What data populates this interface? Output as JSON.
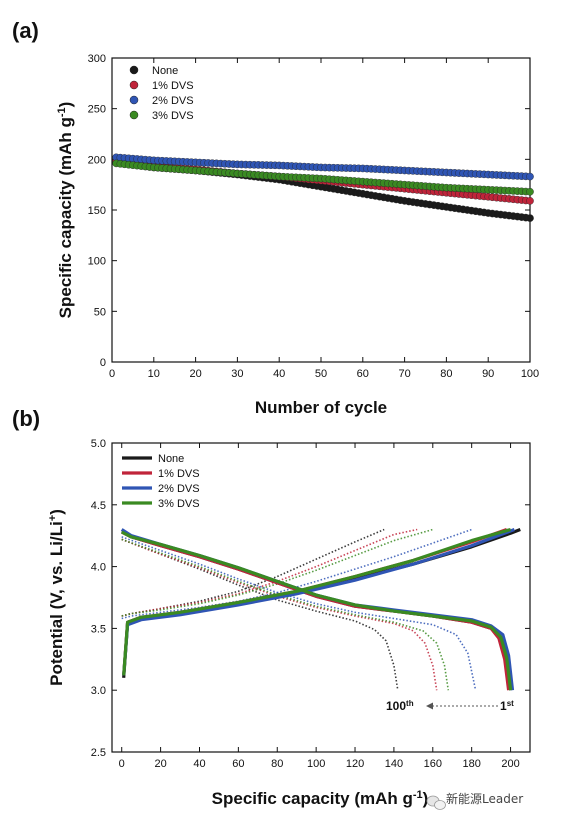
{
  "colors": {
    "None": "#1a1a1a",
    "1% DVS": "#c0243a",
    "2% DVS": "#2f55b4",
    "3% DVS": "#3a8a22"
  },
  "watermark": {
    "icon": "wechat-icon",
    "text": "新能源Leader"
  },
  "chart_data": [
    {
      "panel": "(a)",
      "type": "scatter",
      "xlabel": "Number of cycle",
      "ylabel": "Specific capacity (mAh g-1)",
      "xlim": [
        0,
        100
      ],
      "ylim": [
        0,
        300
      ],
      "xticks": [
        0,
        10,
        20,
        30,
        40,
        50,
        60,
        70,
        80,
        90,
        100
      ],
      "yticks": [
        0,
        50,
        100,
        150,
        200,
        250,
        300
      ],
      "legend": "top-left",
      "series": [
        {
          "name": "None",
          "x": [
            1,
            10,
            20,
            30,
            40,
            50,
            60,
            70,
            80,
            90,
            100
          ],
          "y": [
            197,
            192,
            189,
            185,
            180,
            173,
            166,
            159,
            153,
            147,
            142
          ]
        },
        {
          "name": "1% DVS",
          "x": [
            1,
            10,
            20,
            30,
            40,
            50,
            60,
            70,
            80,
            90,
            100
          ],
          "y": [
            198,
            193,
            190,
            186,
            183,
            179,
            175,
            171,
            167,
            163,
            159
          ]
        },
        {
          "name": "2% DVS",
          "x": [
            1,
            10,
            20,
            30,
            40,
            50,
            60,
            70,
            80,
            90,
            100
          ],
          "y": [
            202,
            199,
            197,
            195,
            194,
            192,
            191,
            189,
            187,
            185,
            183
          ]
        },
        {
          "name": "3% DVS",
          "x": [
            1,
            10,
            20,
            30,
            40,
            50,
            60,
            70,
            80,
            90,
            100
          ],
          "y": [
            196,
            192,
            189,
            186,
            183,
            181,
            178,
            175,
            172,
            170,
            168
          ]
        }
      ]
    },
    {
      "panel": "(b)",
      "type": "line",
      "xlabel": "Specific capacity (mAh g-1)",
      "ylabel": "Potential (V, vs. Li/Li+)",
      "xlim": [
        -5,
        210
      ],
      "ylim": [
        2.5,
        5.0
      ],
      "xticks": [
        0,
        20,
        40,
        60,
        80,
        100,
        120,
        140,
        160,
        180,
        200
      ],
      "yticks": [
        2.5,
        3.0,
        3.5,
        4.0,
        4.5,
        5.0
      ],
      "legend": "top-left",
      "annotations": {
        "cycle_100": "100th",
        "cycle_1": "1st"
      },
      "series": [
        {
          "name": "None",
          "cycle": "1st",
          "segment": "charge",
          "x": [
            1,
            3,
            10,
            30,
            60,
            90,
            120,
            150,
            180,
            200,
            205
          ],
          "y": [
            3.1,
            3.55,
            3.59,
            3.62,
            3.7,
            3.79,
            3.9,
            4.02,
            4.16,
            4.27,
            4.3
          ]
        },
        {
          "name": "None",
          "cycle": "1st",
          "segment": "discharge",
          "x": [
            0,
            5,
            20,
            40,
            60,
            80,
            100,
            120,
            140,
            160,
            180,
            190,
            195,
            198,
            200
          ],
          "y": [
            4.28,
            4.24,
            4.17,
            4.08,
            3.98,
            3.87,
            3.76,
            3.68,
            3.64,
            3.6,
            3.55,
            3.5,
            3.42,
            3.25,
            3.0
          ]
        },
        {
          "name": "1% DVS",
          "cycle": "1st",
          "segment": "charge",
          "x": [
            1,
            3,
            10,
            30,
            60,
            90,
            120,
            150,
            180,
            198
          ],
          "y": [
            3.12,
            3.55,
            3.59,
            3.63,
            3.71,
            3.8,
            3.92,
            4.05,
            4.2,
            4.3
          ]
        },
        {
          "name": "1% DVS",
          "cycle": "1st",
          "segment": "discharge",
          "x": [
            0,
            5,
            20,
            40,
            60,
            80,
            100,
            120,
            140,
            160,
            180,
            190,
            194,
            197,
            199
          ],
          "y": [
            4.28,
            4.24,
            4.17,
            4.08,
            3.98,
            3.87,
            3.76,
            3.68,
            3.64,
            3.6,
            3.55,
            3.5,
            3.42,
            3.25,
            3.0
          ]
        },
        {
          "name": "2% DVS",
          "cycle": "1st",
          "segment": "charge",
          "x": [
            1,
            3,
            10,
            30,
            60,
            90,
            120,
            150,
            180,
            202
          ],
          "y": [
            3.12,
            3.53,
            3.57,
            3.61,
            3.69,
            3.78,
            3.89,
            4.02,
            4.17,
            4.3
          ]
        },
        {
          "name": "2% DVS",
          "cycle": "1st",
          "segment": "discharge",
          "x": [
            0,
            5,
            20,
            40,
            60,
            80,
            100,
            120,
            140,
            160,
            180,
            190,
            196,
            199,
            201
          ],
          "y": [
            4.3,
            4.25,
            4.18,
            4.09,
            3.99,
            3.88,
            3.77,
            3.69,
            3.65,
            3.61,
            3.57,
            3.52,
            3.45,
            3.28,
            3.0
          ]
        },
        {
          "name": "3% DVS",
          "cycle": "1st",
          "segment": "charge",
          "x": [
            1,
            3,
            10,
            30,
            60,
            90,
            120,
            150,
            180,
            200
          ],
          "y": [
            3.12,
            3.55,
            3.59,
            3.63,
            3.71,
            3.8,
            3.92,
            4.05,
            4.21,
            4.3
          ]
        },
        {
          "name": "3% DVS",
          "cycle": "1st",
          "segment": "discharge",
          "x": [
            0,
            5,
            20,
            40,
            60,
            80,
            100,
            120,
            140,
            160,
            180,
            190,
            195,
            198,
            200
          ],
          "y": [
            4.28,
            4.24,
            4.18,
            4.09,
            3.99,
            3.88,
            3.77,
            3.69,
            3.64,
            3.6,
            3.56,
            3.51,
            3.43,
            3.26,
            3.0
          ]
        },
        {
          "name": "None",
          "cycle": "100th",
          "segment": "charge",
          "x": [
            0,
            5,
            20,
            40,
            60,
            80,
            100,
            120,
            135
          ],
          "y": [
            3.6,
            3.62,
            3.66,
            3.72,
            3.8,
            3.92,
            4.06,
            4.2,
            4.3
          ]
        },
        {
          "name": "None",
          "cycle": "100th",
          "segment": "discharge",
          "x": [
            0,
            20,
            40,
            60,
            80,
            100,
            120,
            130,
            136,
            140,
            142
          ],
          "y": [
            4.22,
            4.1,
            3.98,
            3.85,
            3.73,
            3.64,
            3.56,
            3.49,
            3.4,
            3.2,
            3.0
          ]
        },
        {
          "name": "1% DVS",
          "cycle": "100th",
          "segment": "charge",
          "x": [
            0,
            5,
            20,
            40,
            60,
            80,
            100,
            120,
            140,
            152
          ],
          "y": [
            3.6,
            3.62,
            3.66,
            3.71,
            3.78,
            3.88,
            4.0,
            4.13,
            4.26,
            4.3
          ]
        },
        {
          "name": "1% DVS",
          "cycle": "100th",
          "segment": "discharge",
          "x": [
            0,
            20,
            40,
            60,
            80,
            100,
            120,
            140,
            150,
            156,
            160,
            162
          ],
          "y": [
            4.22,
            4.1,
            3.99,
            3.87,
            3.76,
            3.67,
            3.6,
            3.54,
            3.48,
            3.38,
            3.2,
            3.0
          ]
        },
        {
          "name": "2% DVS",
          "cycle": "100th",
          "segment": "charge",
          "x": [
            0,
            5,
            20,
            40,
            60,
            80,
            100,
            120,
            140,
            160,
            180
          ],
          "y": [
            3.58,
            3.6,
            3.63,
            3.67,
            3.72,
            3.79,
            3.88,
            3.98,
            4.08,
            4.19,
            4.3
          ]
        },
        {
          "name": "2% DVS",
          "cycle": "100th",
          "segment": "discharge",
          "x": [
            0,
            20,
            40,
            60,
            80,
            100,
            120,
            140,
            160,
            172,
            178,
            182
          ],
          "y": [
            4.24,
            4.13,
            4.02,
            3.9,
            3.79,
            3.7,
            3.63,
            3.58,
            3.53,
            3.45,
            3.3,
            3.0
          ]
        },
        {
          "name": "3% DVS",
          "cycle": "100th",
          "segment": "charge",
          "x": [
            0,
            5,
            20,
            40,
            60,
            80,
            100,
            120,
            140,
            160
          ],
          "y": [
            3.6,
            3.62,
            3.65,
            3.7,
            3.77,
            3.86,
            3.97,
            4.09,
            4.21,
            4.3
          ]
        },
        {
          "name": "3% DVS",
          "cycle": "100th",
          "segment": "discharge",
          "x": [
            0,
            20,
            40,
            60,
            80,
            100,
            120,
            140,
            155,
            162,
            166,
            168
          ],
          "y": [
            4.22,
            4.11,
            4.0,
            3.88,
            3.77,
            3.68,
            3.61,
            3.55,
            3.48,
            3.38,
            3.2,
            3.0
          ]
        }
      ]
    }
  ]
}
